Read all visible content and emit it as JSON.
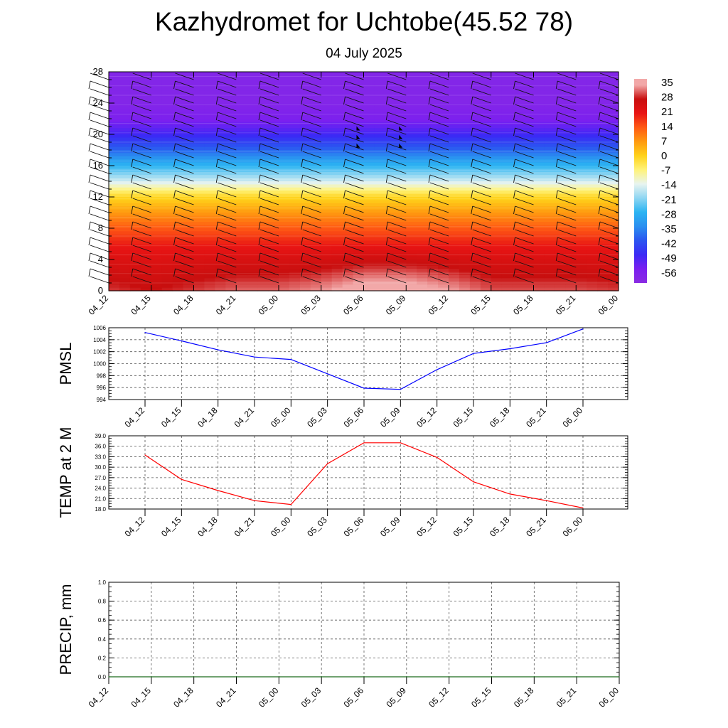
{
  "title": "Kazhydromet for Uchtobe(45.52 78)",
  "subtitle": "04 July 2025",
  "x_labels": [
    "04_12",
    "04_15",
    "04_18",
    "04_21",
    "05_00",
    "05_03",
    "05_06",
    "05_09",
    "05_12",
    "05_15",
    "05_18",
    "05_21",
    "06_00"
  ],
  "chart_data": [
    {
      "type": "heatmap",
      "title": "",
      "ylim": [
        0,
        28
      ],
      "yticks": [
        0,
        4,
        8,
        12,
        16,
        20,
        24,
        28
      ],
      "colorbar": {
        "labels": [
          "35",
          "28",
          "21",
          "14",
          "7",
          "0",
          "-7",
          "-14",
          "-21",
          "-28",
          "-35",
          "-42",
          "-49",
          "-56"
        ],
        "range": [
          -63,
          38
        ],
        "stops": [
          {
            "v": -63,
            "c": "#8a2be2"
          },
          {
            "v": -56,
            "c": "#7a1ff0"
          },
          {
            "v": -49,
            "c": "#3b2af5"
          },
          {
            "v": -42,
            "c": "#2b55f0"
          },
          {
            "v": -35,
            "c": "#2a8ff0"
          },
          {
            "v": -28,
            "c": "#2bb4f2"
          },
          {
            "v": -21,
            "c": "#8fd6f2"
          },
          {
            "v": -14,
            "c": "#e8f4f0"
          },
          {
            "v": -7,
            "c": "#fff37a"
          },
          {
            "v": 0,
            "c": "#ffd21a"
          },
          {
            "v": 7,
            "c": "#ff9a10"
          },
          {
            "v": 14,
            "c": "#ff5a14"
          },
          {
            "v": 21,
            "c": "#e81414"
          },
          {
            "v": 28,
            "c": "#c80f0f"
          },
          {
            "v": 35,
            "c": "#f2a8a8"
          }
        ]
      },
      "temperature_profile": {
        "heights": [
          0,
          2,
          4,
          6,
          8,
          10,
          12,
          13,
          14,
          16,
          18,
          20,
          22,
          24,
          28
        ],
        "values": [
          30,
          27,
          24,
          20,
          14,
          7,
          -1,
          -8,
          -16,
          -28,
          -40,
          -50,
          -57,
          -60,
          -60
        ]
      },
      "surface_warm_by_time": [
        0,
        -2,
        0,
        2,
        2,
        4,
        8,
        8,
        5,
        1,
        1,
        1,
        0
      ],
      "wind_barbs": "black barbs on every time column at heights 1-27"
    },
    {
      "type": "line",
      "ylabel": "PMSL",
      "ylim": [
        994,
        1006
      ],
      "yticks": [
        994,
        996,
        998,
        1000,
        1002,
        1004,
        1006
      ],
      "series": [
        {
          "color": "#0000ff",
          "values": [
            1005.2,
            1003.8,
            1002.3,
            1001.1,
            1000.7,
            998.3,
            995.9,
            995.7,
            999.0,
            1001.7,
            1002.5,
            1003.5,
            1005.8
          ]
        }
      ]
    },
    {
      "type": "line",
      "ylabel": "TEMP at 2 M",
      "ylim": [
        18.0,
        39.0
      ],
      "yticks": [
        "18.0",
        "21.0",
        "24.0",
        "27.0",
        "30.0",
        "33.0",
        "36.0",
        "39.0"
      ],
      "series": [
        {
          "color": "#ff0000",
          "values": [
            33.5,
            26.5,
            23.3,
            20.4,
            19.3,
            31.0,
            37.0,
            37.0,
            32.8,
            25.8,
            22.3,
            20.4,
            18.3
          ]
        }
      ]
    },
    {
      "type": "line",
      "ylabel": "PRECIP, mm",
      "ylim": [
        0.0,
        1.0
      ],
      "yticks": [
        "0.0",
        "0.2",
        "0.4",
        "0.6",
        "0.8",
        "1.0"
      ],
      "series": [
        {
          "color": "#1a6b1a",
          "values": [
            0,
            0,
            0,
            0,
            0,
            0,
            0,
            0,
            0,
            0,
            0,
            0,
            0
          ]
        }
      ]
    }
  ]
}
